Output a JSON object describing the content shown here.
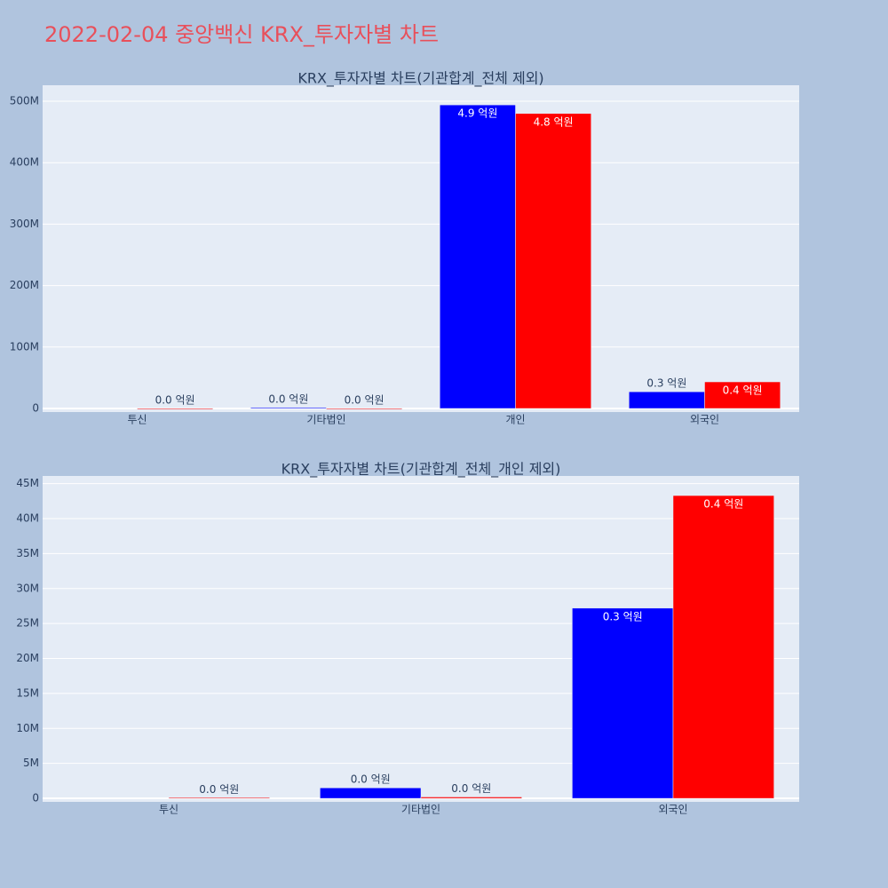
{
  "title": "2022-02-04 중앙백신 KRX_투자자별 차트",
  "chart_data": [
    {
      "type": "bar",
      "title": "KRX_투자자별 차트(기관합계_전체 제외)",
      "categories": [
        "투신",
        "기타법인",
        "개인",
        "외국인"
      ],
      "series": [
        {
          "color": "#0000ff",
          "values": [
            null,
            1500000,
            494000000,
            27200000
          ],
          "value_labels": [
            null,
            "0.0 억원",
            "4.9 억원",
            "0.3 억원"
          ]
        },
        {
          "color": "#ff0000",
          "values": [
            100000,
            200000,
            480000000,
            43300000
          ],
          "value_labels": [
            "0.0 억원",
            "0.0 억원",
            "4.8 억원",
            "0.4 억원"
          ]
        }
      ],
      "ylim": [
        -5800000,
        526000000
      ],
      "yticks": [
        0,
        {
          "value": 100000000,
          "label": "100M"
        },
        {
          "value": 200000000,
          "label": "200M"
        },
        {
          "value": 300000000,
          "label": "300M"
        },
        {
          "value": 400000000,
          "label": "400M"
        },
        {
          "value": 500000000,
          "label": "500M"
        }
      ],
      "grid": true
    },
    {
      "type": "bar",
      "title": "KRX_투자자별 차트(기관합계_전체_개인 제외)",
      "categories": [
        "투신",
        "기타법인",
        "외국인"
      ],
      "series": [
        {
          "color": "#0000ff",
          "values": [
            null,
            1500000,
            27200000
          ],
          "value_labels": [
            null,
            "0.0 억원",
            "0.3 억원"
          ]
        },
        {
          "color": "#ff0000",
          "values": [
            100000,
            200000,
            43300000
          ],
          "value_labels": [
            "0.0 억원",
            "0.0 억원",
            "0.4 억원"
          ]
        }
      ],
      "ylim": [
        -500000,
        46100000
      ],
      "yticks": [
        0,
        {
          "value": 5000000,
          "label": "5M"
        },
        {
          "value": 10000000,
          "label": "10M"
        },
        {
          "value": 15000000,
          "label": "15M"
        },
        {
          "value": 20000000,
          "label": "20M"
        },
        {
          "value": 25000000,
          "label": "25M"
        },
        {
          "value": 30000000,
          "label": "30M"
        },
        {
          "value": 35000000,
          "label": "35M"
        },
        {
          "value": 40000000,
          "label": "40M"
        },
        {
          "value": 45000000,
          "label": "45M"
        }
      ],
      "grid": true
    }
  ]
}
